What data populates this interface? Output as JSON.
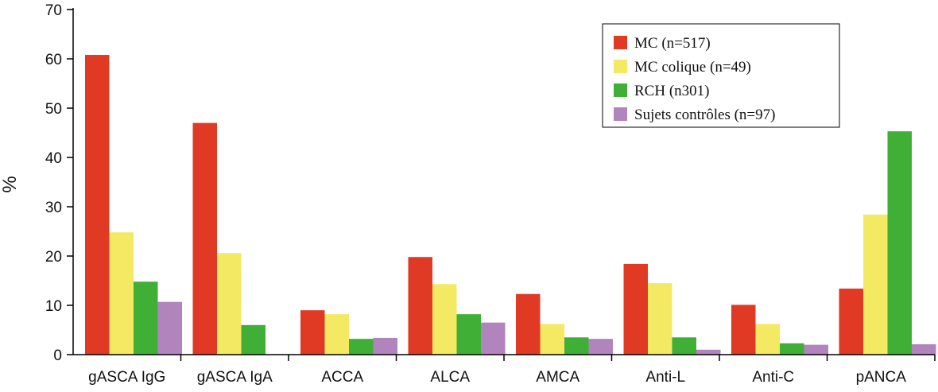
{
  "chart_data": {
    "type": "bar",
    "categories": [
      "gASCA IgG",
      "gASCA IgA",
      "ACCA",
      "ALCA",
      "AMCA",
      "Anti-L",
      "Anti-C",
      "pANCA"
    ],
    "series": [
      {
        "name": "MC (n=517)",
        "color": "#e03a24",
        "values": [
          60.8,
          47.0,
          9.0,
          19.8,
          12.3,
          18.4,
          10.1,
          13.4
        ]
      },
      {
        "name": "MC colique (n=49)",
        "color": "#f4e963",
        "values": [
          24.8,
          20.6,
          8.2,
          14.3,
          6.2,
          14.5,
          6.2,
          28.4
        ]
      },
      {
        "name": "RCH (n301)",
        "color": "#3faf36",
        "values": [
          14.8,
          6.0,
          3.2,
          8.2,
          3.5,
          3.5,
          2.3,
          45.3
        ]
      },
      {
        "name": "Sujets contrôles (n=97)",
        "color": "#b184bd",
        "values": [
          10.7,
          0,
          3.4,
          6.5,
          3.2,
          1.0,
          2.0,
          2.1
        ]
      }
    ],
    "ylabel": "%",
    "ylim": [
      0,
      70
    ],
    "yticks": [
      0,
      10,
      20,
      30,
      40,
      50,
      60,
      70
    ],
    "legend_position": "top-right",
    "grid": false
  }
}
